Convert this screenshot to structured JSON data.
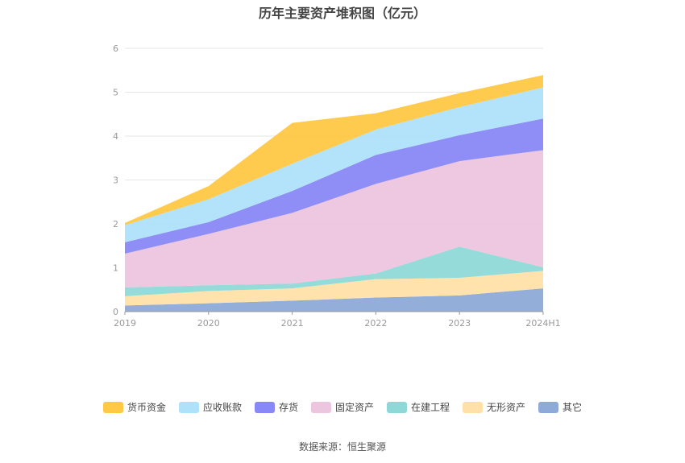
{
  "title": "历年主要资产堆积图（亿元）",
  "source": "数据来源：恒生聚源",
  "chart_data": {
    "type": "area",
    "stacked": true,
    "categories": [
      "2019",
      "2020",
      "2021",
      "2022",
      "2023",
      "2024H1"
    ],
    "ylim": [
      0,
      6
    ],
    "yticks": [
      0,
      1,
      2,
      3,
      4,
      5,
      6
    ],
    "grid": true,
    "legend_position": "bottom",
    "series": [
      {
        "name": "其它",
        "color": "#8eaad8",
        "values": [
          0.14,
          0.19,
          0.25,
          0.32,
          0.37,
          0.53
        ]
      },
      {
        "name": "无形资产",
        "color": "#ffe0a8",
        "values": [
          0.21,
          0.28,
          0.28,
          0.42,
          0.4,
          0.4
        ]
      },
      {
        "name": "在建工程",
        "color": "#8ed9d8",
        "values": [
          0.2,
          0.13,
          0.11,
          0.13,
          0.71,
          0.08
        ]
      },
      {
        "name": "固定资产",
        "color": "#ecc5de",
        "values": [
          0.77,
          1.17,
          1.61,
          2.04,
          1.95,
          2.67
        ]
      },
      {
        "name": "存货",
        "color": "#8888f6",
        "values": [
          0.26,
          0.27,
          0.5,
          0.66,
          0.59,
          0.72
        ]
      },
      {
        "name": "应收账款",
        "color": "#aee2fa",
        "values": [
          0.39,
          0.52,
          0.62,
          0.58,
          0.64,
          0.71
        ]
      },
      {
        "name": "货币资金",
        "color": "#ffc845",
        "values": [
          0.05,
          0.3,
          0.93,
          0.37,
          0.32,
          0.28
        ]
      }
    ],
    "legend_order": [
      "货币资金",
      "应收账款",
      "存货",
      "固定资产",
      "在建工程",
      "无形资产",
      "其它"
    ]
  }
}
